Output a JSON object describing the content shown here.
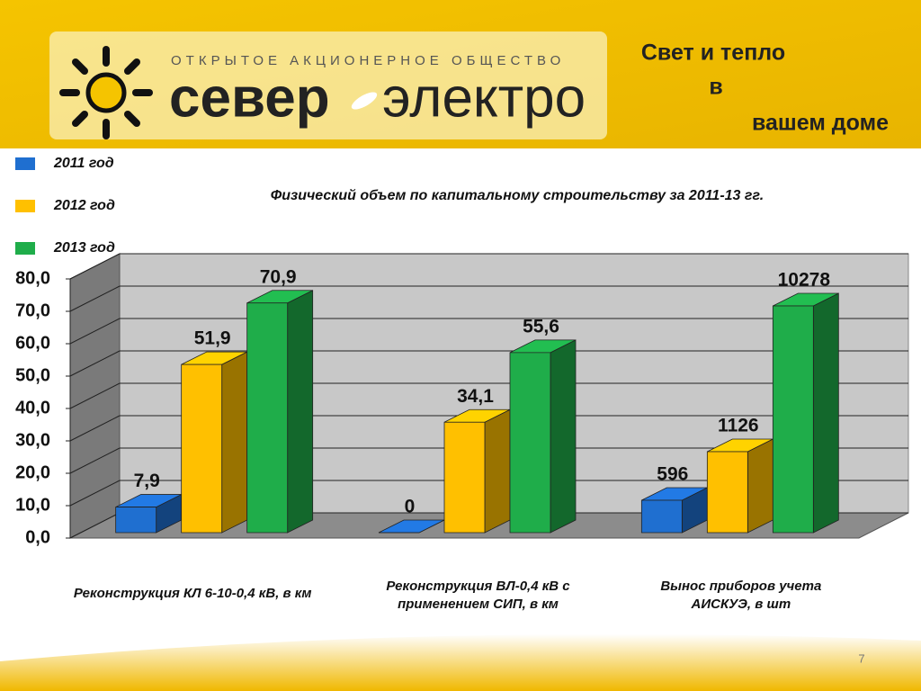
{
  "header": {
    "org": "ОТКРЫТОЕ АКЦИОНЕРНОЕ ОБЩЕСТВО",
    "brand1": "север",
    "brand2": "электро",
    "slogan": [
      "Свет и тепло",
      "в",
      "вашем доме"
    ]
  },
  "page_number": "7",
  "chart_data": {
    "type": "bar",
    "title": "Физический объем по капитальному строительству за 2011-13 гг.",
    "categories": [
      "Реконструкция КЛ 6-10-0,4 кВ, в км",
      "Реконструкция ВЛ-0,4 кВ с применением СИП, в км",
      "Вынос приборов учета АИСКУЭ, в шт"
    ],
    "series": [
      {
        "name": "2011 год",
        "color": "#1f6fd0",
        "values": [
          7.9,
          0,
          10
        ],
        "value_labels": [
          "7,9",
          "0",
          null
        ]
      },
      {
        "name": "2012 год",
        "color": "#ffc000",
        "values": [
          51.9,
          34.1,
          25
        ],
        "value_labels": [
          "51,9",
          "34,1",
          null
        ]
      },
      {
        "name": "2013 год",
        "color": "#1fad4a",
        "values": [
          70.9,
          55.6,
          70
        ],
        "value_labels": [
          "70,9",
          "55,6",
          null
        ]
      }
    ],
    "annotations": [
      "596",
      "1126",
      "10278"
    ],
    "ylim": [
      0,
      80
    ],
    "yticks": [
      {
        "value": 0,
        "label": "0,0"
      },
      {
        "value": 10,
        "label": "10,0"
      },
      {
        "value": 20,
        "label": "20,0"
      },
      {
        "value": 30,
        "label": "30,0"
      },
      {
        "value": 40,
        "label": "40,0"
      },
      {
        "value": 50,
        "label": "50,0"
      },
      {
        "value": 60,
        "label": "60,0"
      },
      {
        "value": 70,
        "label": "70,0"
      },
      {
        "value": 80,
        "label": "80,0"
      }
    ],
    "grid": true
  }
}
